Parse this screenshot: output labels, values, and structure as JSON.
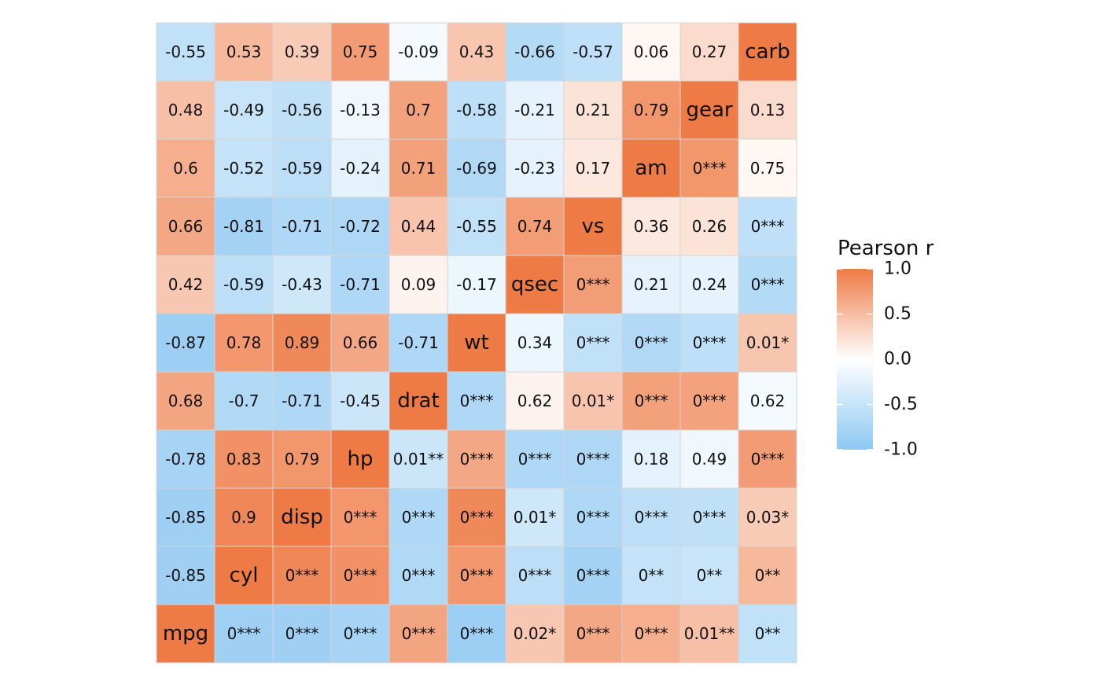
{
  "chart_data": {
    "type": "heatmap",
    "variables": [
      "mpg",
      "cyl",
      "disp",
      "hp",
      "drat",
      "wt",
      "qsec",
      "vs",
      "am",
      "gear",
      "carb"
    ],
    "matrix": [
      [
        1,
        -0.85,
        -0.85,
        -0.78,
        0.68,
        -0.87,
        0.42,
        0.66,
        0.6,
        0.48,
        -0.55
      ],
      [
        -0.85,
        1,
        0.9,
        0.83,
        -0.7,
        0.78,
        -0.59,
        -0.81,
        -0.52,
        -0.49,
        0.53
      ],
      [
        -0.85,
        0.9,
        1,
        0.79,
        -0.71,
        0.89,
        -0.43,
        -0.71,
        -0.59,
        -0.56,
        0.39
      ],
      [
        -0.78,
        0.83,
        0.79,
        1,
        -0.45,
        0.66,
        -0.71,
        -0.72,
        -0.24,
        -0.13,
        0.75
      ],
      [
        0.68,
        -0.7,
        -0.71,
        -0.45,
        1,
        -0.71,
        0.09,
        0.44,
        0.71,
        0.7,
        -0.09
      ],
      [
        -0.87,
        0.78,
        0.89,
        0.66,
        -0.71,
        1,
        -0.17,
        -0.55,
        -0.69,
        -0.58,
        0.43
      ],
      [
        0.42,
        -0.59,
        -0.43,
        -0.71,
        0.09,
        -0.17,
        1,
        0.74,
        -0.23,
        -0.21,
        -0.66
      ],
      [
        0.66,
        -0.81,
        -0.71,
        -0.72,
        0.44,
        -0.55,
        0.74,
        1,
        0.17,
        0.21,
        -0.57
      ],
      [
        0.6,
        -0.52,
        -0.59,
        -0.24,
        0.71,
        -0.69,
        -0.23,
        0.17,
        1,
        0.79,
        0.06
      ],
      [
        0.48,
        -0.49,
        -0.56,
        -0.13,
        0.7,
        -0.58,
        -0.21,
        0.21,
        0.79,
        1,
        0.27
      ],
      [
        -0.55,
        0.53,
        0.39,
        0.75,
        -0.09,
        0.43,
        -0.66,
        -0.57,
        0.06,
        0.27,
        1
      ]
    ],
    "pvalue_labels": [
      [
        null,
        null,
        null,
        null,
        null,
        null,
        null,
        null,
        null,
        null,
        null
      ],
      [
        "0***",
        null,
        null,
        null,
        null,
        null,
        null,
        null,
        null,
        null,
        null
      ],
      [
        "0***",
        "0***",
        null,
        null,
        null,
        null,
        null,
        null,
        null,
        null,
        null
      ],
      [
        "0***",
        "0***",
        "0***",
        null,
        null,
        null,
        null,
        null,
        null,
        null,
        null
      ],
      [
        "0***",
        "0***",
        "0***",
        "0.01**",
        null,
        null,
        null,
        null,
        null,
        null,
        null
      ],
      [
        "0***",
        "0***",
        "0***",
        "0***",
        "0***",
        null,
        null,
        null,
        null,
        null,
        null
      ],
      [
        "0.02*",
        "0***",
        "0.01*",
        "0***",
        "0.62",
        "0.34",
        null,
        null,
        null,
        null,
        null
      ],
      [
        "0***",
        "0***",
        "0***",
        "0***",
        "0.01*",
        "0***",
        "0***",
        null,
        null,
        null,
        null
      ],
      [
        "0***",
        "0**",
        "0***",
        "0.18",
        "0***",
        "0***",
        "0.21",
        "0.36",
        null,
        null,
        null
      ],
      [
        "0.01**",
        "0**",
        "0***",
        "0.49",
        "0***",
        "0***",
        "0.24",
        "0.26",
        "0***",
        null,
        null
      ],
      [
        "0**",
        "0**",
        "0.03*",
        "0***",
        "0.62",
        "0.01*",
        "0***",
        "0***",
        "0.75",
        "0.13",
        null
      ]
    ],
    "legend": {
      "title": "Pearson r",
      "ticks": [
        "1.0",
        "0.5",
        "0.0",
        "-0.5",
        "-1.0"
      ],
      "range": [
        -1,
        1
      ]
    },
    "colors": {
      "low": "#8ec8f2",
      "mid": "#ffffff",
      "high": "#ee7a45"
    },
    "layout_note": "lower triangle shows r, diagonal shows variable names, upper triangle shows p-value labels"
  }
}
